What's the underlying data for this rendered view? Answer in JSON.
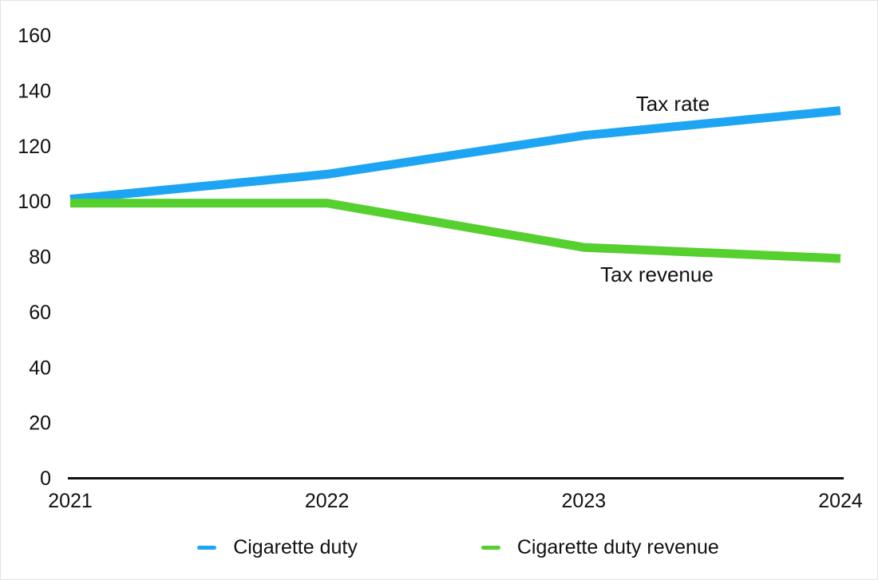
{
  "chart_data": {
    "type": "line",
    "x": [
      "2021",
      "2022",
      "2023",
      "2024"
    ],
    "series": [
      {
        "name": "Cigarette duty",
        "annotation": "Tax rate",
        "color": "#1da5f4",
        "values": [
          100,
          109,
          123,
          132
        ]
      },
      {
        "name": "Cigarette duty revenue",
        "annotation": "Tax revenue",
        "color": "#56d02e",
        "values": [
          100,
          100,
          84,
          80
        ]
      }
    ],
    "title": "",
    "xlabel": "",
    "ylabel": "",
    "ylim": [
      0,
      160
    ],
    "yticks": [
      0,
      20,
      40,
      60,
      80,
      100,
      120,
      140,
      160
    ],
    "grid": false,
    "legend_position": "bottom",
    "axis_color": "#111111"
  },
  "annotations": {
    "tax_rate": "Tax rate",
    "tax_revenue": "Tax revenue"
  },
  "legend": {
    "items": [
      {
        "label": "Cigarette duty",
        "color": "#1da5f4"
      },
      {
        "label": "Cigarette duty revenue",
        "color": "#56d02e"
      }
    ]
  }
}
